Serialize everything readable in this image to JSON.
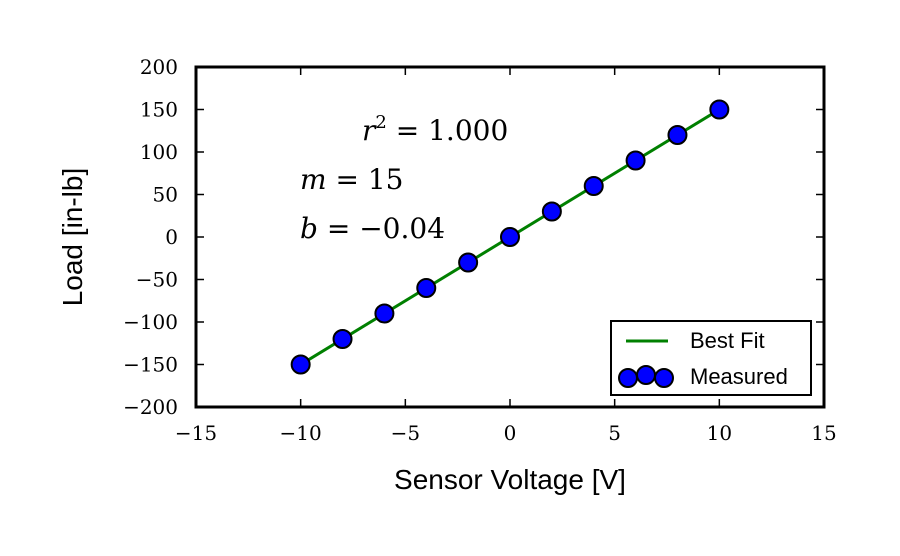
{
  "chart_data": {
    "type": "scatter",
    "title": "",
    "xlabel": "Sensor Voltage [V]",
    "ylabel": "Load [in-lb]",
    "xlim": [
      -15,
      15
    ],
    "ylim": [
      -200,
      200
    ],
    "xticks": [
      -15,
      -10,
      -5,
      0,
      5,
      10,
      15
    ],
    "yticks": [
      -200,
      -150,
      -100,
      -50,
      0,
      50,
      100,
      150,
      200
    ],
    "xtick_labels": [
      "−15",
      "−10",
      "−5",
      "0",
      "5",
      "10",
      "15"
    ],
    "ytick_labels": [
      "−200",
      "−150",
      "−100",
      "−50",
      "0",
      "50",
      "100",
      "150",
      "200"
    ],
    "grid": false,
    "legend_position": "bottom-right",
    "series": [
      {
        "name": "Measured",
        "kind": "scatter",
        "color": "#0000ff",
        "x": [
          -10,
          -8,
          -6,
          -4,
          -2,
          0,
          2,
          4,
          6,
          8,
          10
        ],
        "y": [
          -150,
          -120,
          -90,
          -60,
          -30,
          0,
          30,
          60,
          90,
          120,
          150
        ]
      },
      {
        "name": "Best Fit",
        "kind": "line",
        "color": "#008000",
        "x": [
          -10,
          10
        ],
        "y": [
          -150.04,
          149.96
        ]
      }
    ],
    "legend_order": [
      "Best Fit",
      "Measured"
    ],
    "annotations": {
      "r2_label": "r",
      "r2_sup": "2",
      "r2_value": " = 1.000",
      "m_label": "m",
      "m_value": " = 15",
      "b_label": "b",
      "b_value": " = −0.04"
    }
  }
}
